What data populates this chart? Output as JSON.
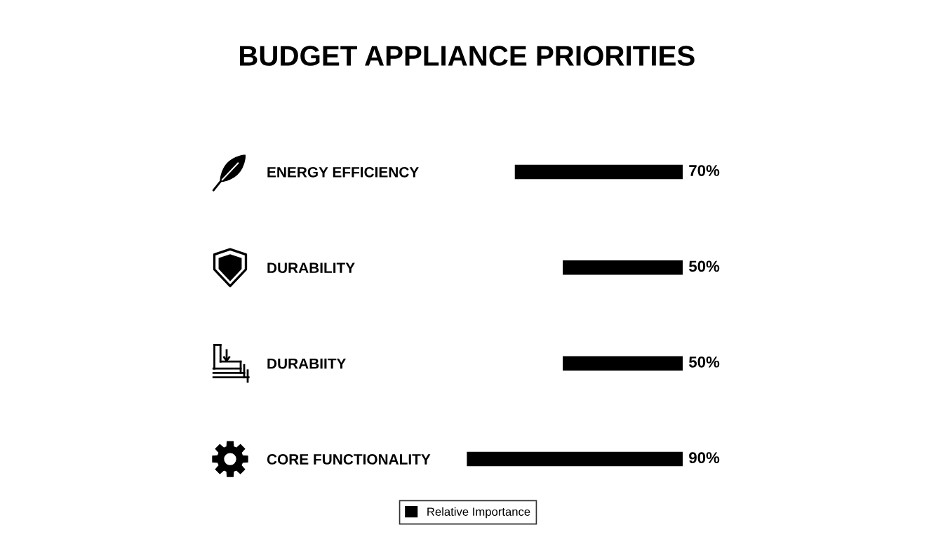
{
  "chart_data": {
    "type": "bar",
    "title": "BUDGET APPLIANCE PRIORITIES",
    "orientation": "horizontal",
    "categories": [
      "ENERGY EFFICIENCY",
      "DURABILITY",
      "DURABIITY",
      "CORE FUNCTIONALITY"
    ],
    "series": [
      {
        "name": "Relative Importance",
        "color": "#000000",
        "values": [
          70,
          50,
          50,
          90
        ],
        "value_labels": [
          "70%",
          "50%",
          "50%",
          "90%"
        ]
      }
    ],
    "legend": "bottom",
    "tick_labels": "y"
  }
}
